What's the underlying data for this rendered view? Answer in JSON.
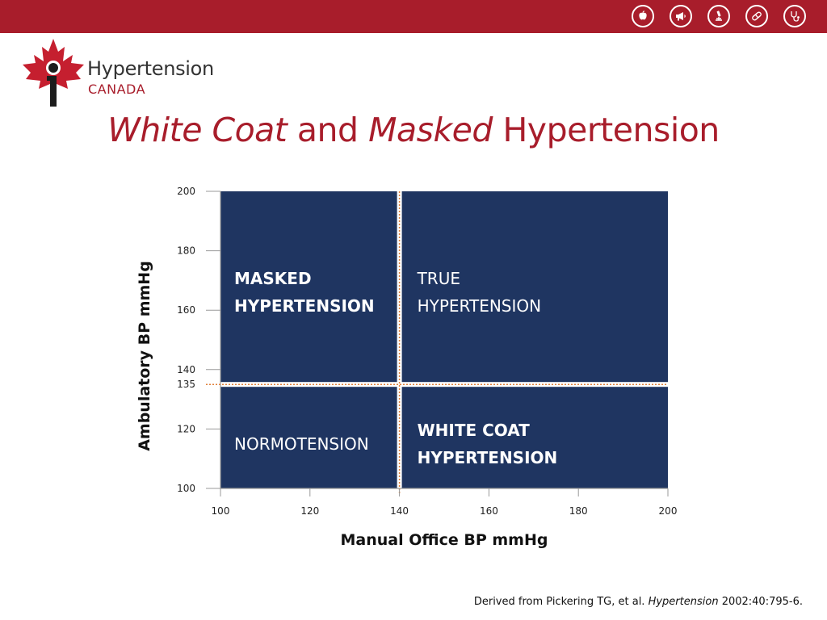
{
  "header": {
    "color": "#a81d2b",
    "icons": [
      "apple-icon",
      "megaphone-icon",
      "microscope-icon",
      "pill-icon",
      "stethoscope-icon"
    ]
  },
  "logo": {
    "line1": "Hypertension",
    "line2": "CANADA",
    "icon": "maple-leaf-icon"
  },
  "title": {
    "part1": "White Coat",
    "part2": " and ",
    "part3": "Masked",
    "part4": " Hypertension"
  },
  "chart_data": {
    "type": "quadrant",
    "xlabel": "Manual Office BP mmHg",
    "ylabel": "Ambulatory BP mmHg",
    "xlim": [
      100,
      200
    ],
    "ylim": [
      100,
      200
    ],
    "xticks": [
      100,
      120,
      140,
      160,
      180,
      200
    ],
    "yticks": [
      100,
      120,
      135,
      140,
      160,
      180,
      200
    ],
    "x_threshold": 140,
    "y_threshold": 135,
    "zone_color": "#1f3561",
    "threshold_color": "#e0803a",
    "quadrants": [
      {
        "id": "masked",
        "line1": "MASKED",
        "line2": "HYPERTENSION",
        "x": [
          100,
          140
        ],
        "y": [
          135,
          200
        ],
        "bold": true
      },
      {
        "id": "true",
        "line1": "TRUE",
        "line2": "HYPERTENSION",
        "x": [
          140,
          200
        ],
        "y": [
          135,
          200
        ],
        "bold": false
      },
      {
        "id": "normo",
        "line1": "NORMOTENSION",
        "line2": "",
        "x": [
          100,
          140
        ],
        "y": [
          100,
          135
        ],
        "bold": false
      },
      {
        "id": "whitecoat",
        "line1": "WHITE COAT",
        "line2": "HYPERTENSION",
        "x": [
          140,
          200
        ],
        "y": [
          100,
          135
        ],
        "bold": true
      }
    ]
  },
  "source": {
    "prefix": "Derived from Pickering TG, et al. ",
    "journal": "Hypertension",
    "suffix": " 2002:40:795-6."
  }
}
